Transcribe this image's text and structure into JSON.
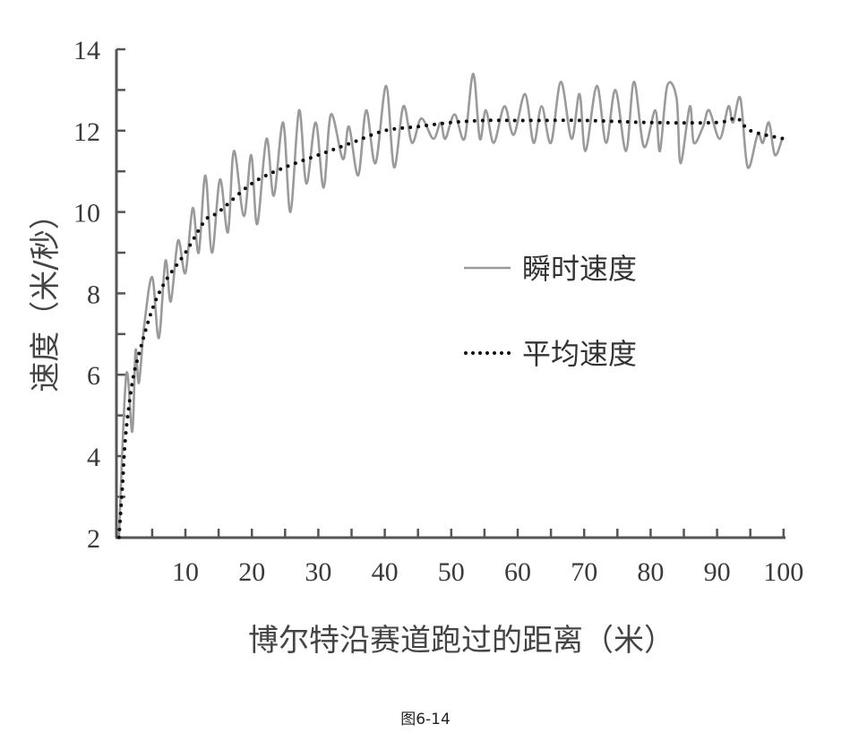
{
  "chart_data": {
    "type": "line",
    "title": "",
    "caption": "图6-14",
    "xlabel": "博尔特沿赛道跑过的距离（米）",
    "ylabel": "速度（米/秒）",
    "xlim": [
      0,
      100
    ],
    "ylim": [
      2,
      14
    ],
    "xticks": [
      10,
      20,
      30,
      40,
      50,
      60,
      70,
      80,
      90,
      100
    ],
    "yticks": [
      2,
      4,
      6,
      8,
      10,
      12,
      14
    ],
    "grid": false,
    "legend_position": "center-right",
    "colors": {
      "instant": "#9a9a9a",
      "average": "#111111",
      "axis": "#555555"
    },
    "series": [
      {
        "name": "瞬时速度",
        "style": "solid",
        "x": [
          0,
          1.1,
          2.0,
          2.5,
          3.0,
          3.8,
          5.0,
          6.0,
          7.0,
          7.8,
          8.9,
          10.0,
          11.1,
          12.0,
          13.0,
          14.0,
          15.2,
          16.4,
          17.3,
          18.8,
          19.9,
          20.8,
          22.2,
          23.3,
          24.7,
          25.8,
          27.1,
          28.2,
          29.6,
          30.8,
          31.9,
          33.7,
          34.6,
          36.0,
          37.2,
          38.6,
          40.2,
          41.4,
          42.8,
          44.1,
          45.5,
          47.3,
          48.4,
          49.1,
          50.5,
          52.0,
          53.3,
          54.3,
          55.2,
          56.4,
          58.0,
          59.4,
          61.1,
          62.4,
          63.6,
          65.0,
          66.5,
          68.1,
          69.3,
          70.2,
          71.9,
          73.3,
          74.7,
          76.3,
          77.5,
          79.0,
          80.7,
          81.4,
          82.5,
          83.9,
          84.5,
          85.9,
          86.5,
          87.9,
          88.8,
          90.4,
          91.7,
          92.4,
          93.5,
          94.6,
          96.1,
          96.9,
          97.8,
          98.7,
          99.8
        ],
        "y": [
          2.0,
          6.0,
          4.6,
          6.6,
          5.8,
          7.2,
          8.4,
          6.9,
          8.8,
          7.8,
          9.3,
          8.5,
          10.1,
          9.0,
          10.9,
          9.0,
          10.8,
          9.5,
          11.5,
          9.9,
          11.4,
          9.7,
          11.8,
          10.4,
          12.2,
          10.0,
          12.5,
          10.7,
          12.2,
          10.6,
          12.4,
          11.3,
          12.1,
          10.9,
          12.5,
          11.2,
          13.1,
          11.1,
          12.6,
          11.7,
          12.3,
          11.8,
          12.2,
          11.8,
          12.4,
          11.8,
          13.4,
          11.8,
          12.5,
          11.7,
          12.6,
          11.9,
          12.9,
          11.7,
          12.6,
          11.7,
          13.2,
          11.8,
          12.9,
          11.5,
          13.1,
          11.7,
          13.0,
          11.5,
          13.2,
          11.6,
          12.5,
          11.5,
          13.1,
          12.8,
          11.2,
          12.6,
          11.7,
          12.1,
          12.5,
          11.8,
          12.6,
          12.2,
          12.8,
          11.1,
          11.9,
          11.7,
          12.2,
          11.4,
          11.8
        ]
      },
      {
        "name": "平均速度",
        "style": "dotted",
        "x": [
          0,
          0.5,
          1,
          2,
          3,
          5,
          7,
          10,
          13,
          15,
          20,
          25,
          30,
          35,
          40,
          45,
          50,
          55,
          60,
          70,
          80,
          90,
          93,
          95,
          100
        ],
        "y": [
          2.0,
          3.2,
          4.5,
          5.8,
          6.5,
          7.6,
          8.3,
          9.0,
          9.8,
          10.0,
          10.7,
          11.1,
          11.4,
          11.7,
          12.0,
          12.1,
          12.2,
          12.25,
          12.25,
          12.25,
          12.2,
          12.2,
          12.3,
          12.0,
          11.8
        ]
      }
    ]
  }
}
